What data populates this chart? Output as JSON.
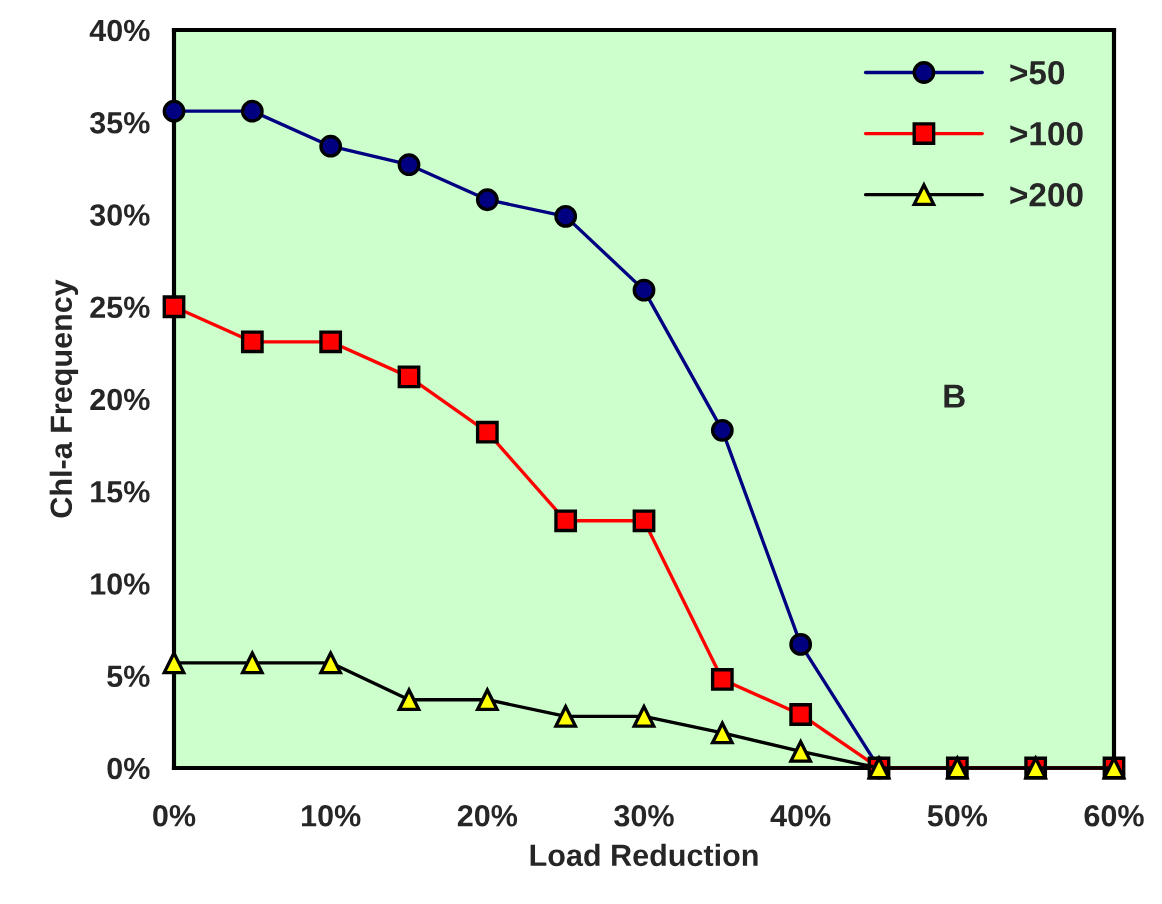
{
  "chart_data": {
    "type": "line",
    "xlabel": "Load Reduction",
    "ylabel": "Chl-a Frequency",
    "x": [
      0,
      5,
      10,
      15,
      20,
      25,
      30,
      35,
      40,
      45,
      50,
      55,
      60
    ],
    "series": [
      {
        "name": ">50",
        "color": "#000080",
        "marker": "circle",
        "values": [
          35.6,
          35.6,
          33.7,
          32.7,
          30.8,
          29.9,
          25.9,
          18.3,
          6.7,
          0,
          null,
          null,
          null
        ]
      },
      {
        "name": ">100",
        "color": "#ff0000",
        "marker": "square",
        "values": [
          25.0,
          23.1,
          23.1,
          21.2,
          18.2,
          13.4,
          13.4,
          4.8,
          2.9,
          0,
          0,
          0,
          0
        ]
      },
      {
        "name": ">200",
        "color": "#ffff00",
        "marker": "triangle",
        "values": [
          5.7,
          5.7,
          5.7,
          3.7,
          3.7,
          2.8,
          2.8,
          1.9,
          0.9,
          0,
          0,
          0,
          0
        ]
      }
    ],
    "xlim": [
      0,
      60
    ],
    "xticks": [
      {
        "value": 0,
        "label": "0%"
      },
      {
        "value": 10,
        "label": "10%"
      },
      {
        "value": 20,
        "label": "20%"
      },
      {
        "value": 30,
        "label": "30%"
      },
      {
        "value": 40,
        "label": "40%"
      },
      {
        "value": 50,
        "label": "50%"
      },
      {
        "value": 60,
        "label": "60%"
      }
    ],
    "ylim": [
      0,
      40
    ],
    "yticks": [
      {
        "value": 0,
        "label": "0%"
      },
      {
        "value": 5,
        "label": "5%"
      },
      {
        "value": 10,
        "label": "10%"
      },
      {
        "value": 15,
        "label": "15%"
      },
      {
        "value": 20,
        "label": "20%"
      },
      {
        "value": 25,
        "label": "25%"
      },
      {
        "value": 30,
        "label": "30%"
      },
      {
        "value": 35,
        "label": "35%"
      },
      {
        "value": 40,
        "label": "40%"
      }
    ],
    "annotations": [
      "B"
    ],
    "grid": false,
    "legend": "top right",
    "line_style": "solid"
  }
}
